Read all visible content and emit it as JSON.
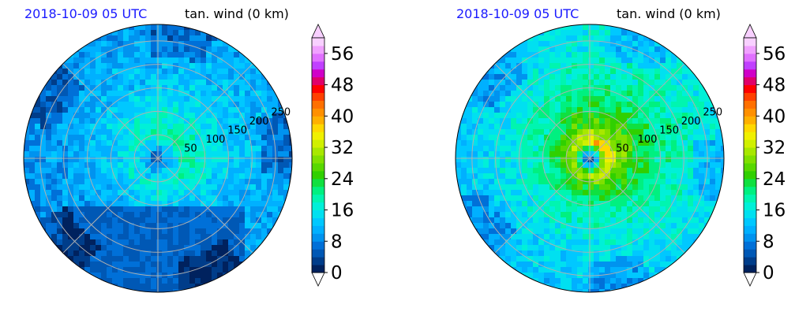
{
  "chart_data": [
    {
      "type": "polar-contour",
      "title_left": "2018-10-09 05 UTC",
      "title_right": "tan. wind (0 km)",
      "radial_ticks": [
        50,
        100,
        150,
        200,
        250
      ],
      "colorbar": {
        "ticks": [
          0,
          8,
          16,
          24,
          32,
          40,
          48,
          56
        ],
        "min": 0,
        "max": 60,
        "step": 2,
        "extend": "both",
        "colors": [
          "#00225e",
          "#003d8a",
          "#0058b5",
          "#0070d8",
          "#0093ef",
          "#00b0ff",
          "#00c8ff",
          "#00e0f0",
          "#00f0d8",
          "#00f5b0",
          "#00f080",
          "#10e040",
          "#30d000",
          "#58d800",
          "#80e000",
          "#a8e800",
          "#d0f000",
          "#f0f000",
          "#ffd800",
          "#ffb000",
          "#ff9000",
          "#ff7000",
          "#ff4000",
          "#ff0000",
          "#e0006a",
          "#d000c8",
          "#c040ff",
          "#e070ff",
          "#f0a0ff",
          "#f8d0ff"
        ]
      },
      "field": {
        "eye_radius": 20,
        "max_wind": 19,
        "rmw": 55,
        "south_land": true
      }
    },
    {
      "type": "polar-contour",
      "title_left": "2018-10-09 05 UTC",
      "title_right": "tan. wind (0 km)",
      "radial_ticks": [
        50,
        100,
        150,
        200,
        250
      ],
      "colorbar": {
        "ticks": [
          0,
          8,
          16,
          24,
          32,
          40,
          48,
          56
        ],
        "min": 0,
        "max": 60,
        "step": 2,
        "extend": "both",
        "colors": [
          "#00225e",
          "#003d8a",
          "#0058b5",
          "#0070d8",
          "#0093ef",
          "#00b0ff",
          "#00c8ff",
          "#00e0f0",
          "#00f0d8",
          "#00f5b0",
          "#00f080",
          "#10e040",
          "#30d000",
          "#58d800",
          "#80e000",
          "#a8e800",
          "#d0f000",
          "#f0f000",
          "#ffd800",
          "#ffb000",
          "#ff9000",
          "#ff7000",
          "#ff4000",
          "#ff0000",
          "#e0006a",
          "#d000c8",
          "#c040ff",
          "#e070ff",
          "#f0a0ff",
          "#f8d0ff"
        ]
      },
      "field": {
        "eye_radius": 12,
        "max_wind": 34,
        "rmw": 35,
        "south_land": false
      }
    }
  ]
}
